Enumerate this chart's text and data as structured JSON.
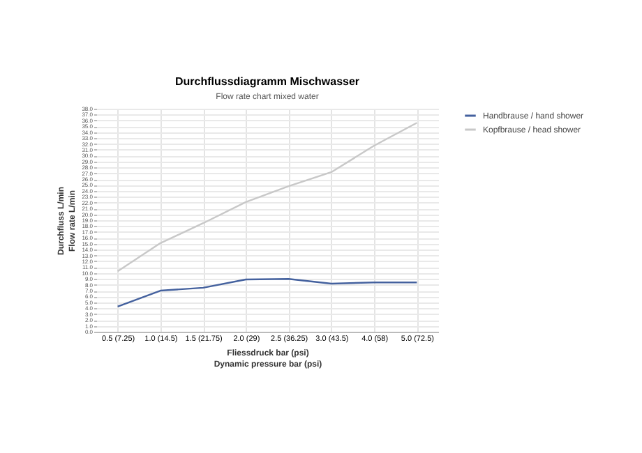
{
  "chart_data": {
    "type": "line",
    "title": "Durchflussdiagramm Mischwasser",
    "subtitle": "Flow rate chart mixed water",
    "xlabel": "Fliessdruck bar (psi)",
    "ylabel": "Durchfluss L/min",
    "annotations": [
      "Dynamic pressure bar (psi)",
      "Flow rate L/min"
    ],
    "categories": [
      "0.5 (7.25)",
      "1.0 (14.5)",
      "1.5 (21.75)",
      "2.0 (29)",
      "2.5 (36.25)",
      "3.0 (43.5)",
      "4.0 (58)",
      "5.0 (72.5)"
    ],
    "series": [
      {
        "name": "Handbrause / hand shower",
        "color": "#44619e",
        "values": [
          4.3,
          7.0,
          7.5,
          8.9,
          9.0,
          8.2,
          8.4,
          8.4
        ]
      },
      {
        "name": "Kopfbrause / head shower",
        "color": "#c8c8c8",
        "values": [
          10.3,
          15.1,
          18.5,
          22.1,
          24.8,
          27.2,
          31.7,
          35.6
        ]
      }
    ],
    "ylim": [
      0,
      38
    ],
    "yticks": [
      {
        "value": 0,
        "label": "0.0"
      },
      {
        "value": 1,
        "label": "1.0"
      },
      {
        "value": 2,
        "label": "2.0"
      },
      {
        "value": 3,
        "label": "3.0"
      },
      {
        "value": 4,
        "label": "4.0"
      },
      {
        "value": 5,
        "label": "5.0"
      },
      {
        "value": 6,
        "label": "6.0"
      },
      {
        "value": 7,
        "label": "7.0"
      },
      {
        "value": 8,
        "label": "8.0"
      },
      {
        "value": 9,
        "label": "9.0"
      },
      {
        "value": 10,
        "label": "10.0"
      },
      {
        "value": 11,
        "label": "11.0"
      },
      {
        "value": 12,
        "label": "12.0"
      },
      {
        "value": 13,
        "label": "13.0"
      },
      {
        "value": 14,
        "label": "14.0"
      },
      {
        "value": 15,
        "label": "15.0"
      },
      {
        "value": 16,
        "label": "16.0"
      },
      {
        "value": 17,
        "label": "17.0"
      },
      {
        "value": 18,
        "label": "18.0"
      },
      {
        "value": 19,
        "label": "19.0"
      },
      {
        "value": 20,
        "label": "20.0"
      },
      {
        "value": 21,
        "label": "21.0"
      },
      {
        "value": 22,
        "label": "22.0"
      },
      {
        "value": 23,
        "label": "23.0"
      },
      {
        "value": 24,
        "label": "24.0"
      },
      {
        "value": 25,
        "label": "25.0"
      },
      {
        "value": 26,
        "label": "26.0"
      },
      {
        "value": 27,
        "label": "27.0"
      },
      {
        "value": 28,
        "label": "28.0"
      },
      {
        "value": 29,
        "label": "29.0"
      },
      {
        "value": 30,
        "label": "30.0"
      },
      {
        "value": 31,
        "label": "31.0"
      },
      {
        "value": 32,
        "label": "32.0"
      },
      {
        "value": 33,
        "label": "33.0"
      },
      {
        "value": 34,
        "label": "34.0"
      },
      {
        "value": 35,
        "label": "35.0"
      },
      {
        "value": 36,
        "label": "36.0"
      },
      {
        "value": 37,
        "label": "37.0"
      },
      {
        "value": 38,
        "label": "38.0"
      }
    ],
    "grid": true,
    "legend": "right",
    "line_style": "solid"
  }
}
